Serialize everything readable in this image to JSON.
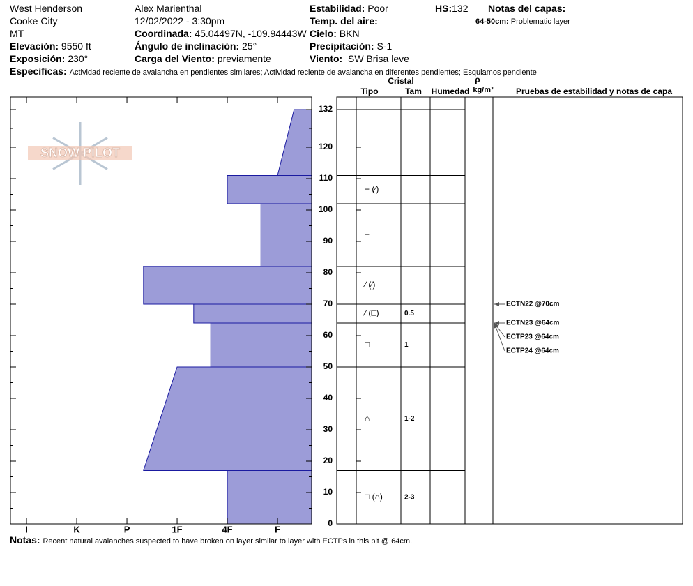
{
  "header": {
    "location": [
      "West Henderson",
      "Cooke City",
      "MT"
    ],
    "observer": "Alex Marienthal",
    "datetime": "12/02/2022 - 3:30pm",
    "fields": [
      {
        "label": "Elevación:",
        "value": "9550 ft"
      },
      {
        "label": "Exposición:",
        "value": "230°"
      },
      {
        "label": "Coordinada:",
        "value": "45.04497N, -109.94443W"
      },
      {
        "label": "Ángulo de inclinación:",
        "value": "25°"
      },
      {
        "label": "Carga del Viento:",
        "value": "previamente"
      },
      {
        "label": "Estabilidad:",
        "value": "Poor"
      },
      {
        "label": "Temp. del aire:"
      },
      {
        "label": "Cielo:",
        "value": "BKN"
      },
      {
        "label": "Precipitación:",
        "value": "S-1"
      },
      {
        "label": "Viento:",
        "value": "SW  Brisa leve"
      },
      {
        "label": "HS:",
        "value": "132"
      }
    ],
    "layer_notes_title": "Notas del capas:",
    "layer_notes": [
      {
        "label": "64-50cm:",
        "value": "Problematic layer"
      }
    ],
    "specifics": {
      "label": "Especificas:",
      "value": "Actividad reciente de avalancha en pendientes similares; Actividad reciente de avalancha en diferentes pendientes; Esquiamos pendiente"
    }
  },
  "logo": "SNOW PILOT",
  "chart_data": {
    "type": "snow-profile",
    "color": "#9c9cd8",
    "ylim": [
      0,
      136
    ],
    "yticks": [
      0,
      10,
      20,
      30,
      40,
      50,
      60,
      70,
      80,
      90,
      100,
      110,
      120,
      132
    ],
    "xlim": [
      6.32,
      0.32
    ],
    "xticks": [
      {
        "value": 6,
        "label": "I"
      },
      {
        "value": 5,
        "label": "K"
      },
      {
        "value": 4,
        "label": "P"
      },
      {
        "value": 3,
        "label": "1F"
      },
      {
        "value": 2,
        "label": "4F"
      },
      {
        "value": 1,
        "label": "F"
      }
    ],
    "layers": [
      {
        "bottom": 0,
        "top": 17,
        "hardness_bottom": 2,
        "hardness_top": 2
      },
      {
        "bottom": 17,
        "top": 50,
        "hardness_bottom": 3.67,
        "hardness_top": 3
      },
      {
        "bottom": 50,
        "top": 64,
        "hardness_bottom": 2.33,
        "hardness_top": 2.33
      },
      {
        "bottom": 64,
        "top": 70,
        "hardness_bottom": 2.67,
        "hardness_top": 2.67
      },
      {
        "bottom": 70,
        "top": 82,
        "hardness_bottom": 3.67,
        "hardness_top": 3.67
      },
      {
        "bottom": 82,
        "top": 102,
        "hardness_bottom": 1.33,
        "hardness_top": 1.33
      },
      {
        "bottom": 102,
        "top": 111,
        "hardness_bottom": 2,
        "hardness_top": 2
      },
      {
        "bottom": 111,
        "top": 132,
        "hardness_bottom": 1,
        "hardness_top": 0.67
      }
    ]
  },
  "table": {
    "headers": {
      "cristal": "Cristal",
      "tipo": "Tipo",
      "tam": "Tam",
      "humedad": "Humedad",
      "rho": "ρ",
      "density_unit": "kg/m³",
      "tests": "Pruebas de estabilidad y notas de capa"
    },
    "rows": [
      {
        "tipo": "□ (⌂)",
        "tam": "2-3"
      },
      {
        "tipo": "⌂",
        "tam": "1-2"
      },
      {
        "tipo": "□",
        "tam": "1"
      },
      {
        "tipo": "⁄ (□)",
        "tam": "0.5"
      },
      {
        "tipo": "⁄ (⁄)"
      },
      {
        "tipo": "+"
      },
      {
        "tipo": "+ (⁄)"
      },
      {
        "tipo": "+"
      }
    ]
  },
  "tests": [
    {
      "label": "ECTN22 @70cm",
      "depth": 70
    },
    {
      "label": "ECTN23 @64cm",
      "depth": 64
    },
    {
      "label": "ECTP23 @64cm",
      "depth": 64
    },
    {
      "label": "ECTP24 @64cm",
      "depth": 64
    }
  ],
  "notes": {
    "label": "Notas:",
    "value": "Recent natural avalanches suspected to have broken on layer similar to layer with ECTPs in this pit @ 64cm."
  }
}
